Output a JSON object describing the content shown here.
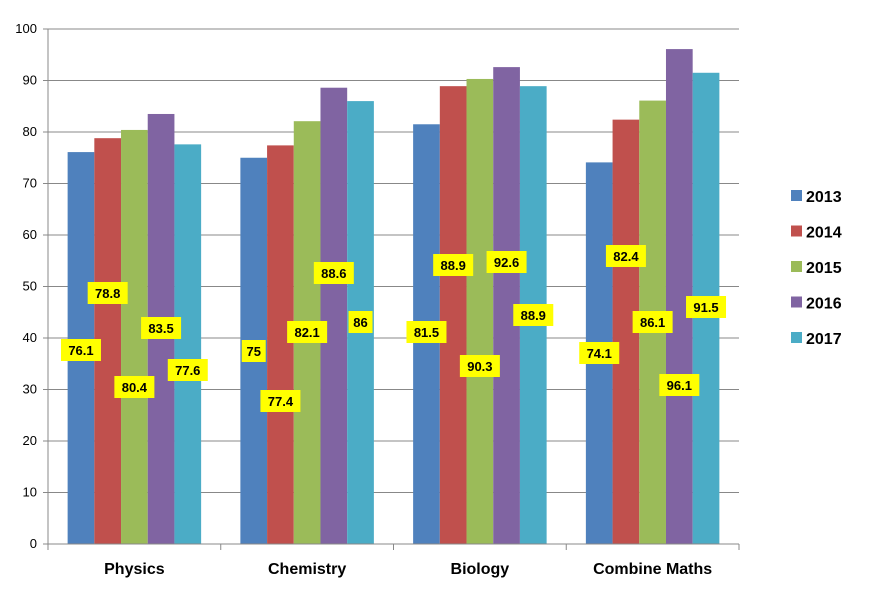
{
  "chart_data": {
    "type": "bar",
    "categories": [
      "Physics",
      "Chemistry",
      "Biology",
      "Combine Maths"
    ],
    "series": [
      {
        "name": "2013",
        "color": "#4F81BD",
        "values": [
          76.1,
          75,
          81.5,
          74.1
        ]
      },
      {
        "name": "2014",
        "color": "#C0504D",
        "values": [
          78.8,
          77.4,
          88.9,
          82.4
        ]
      },
      {
        "name": "2015",
        "color": "#9BBB59",
        "values": [
          80.4,
          82.1,
          90.3,
          86.1
        ]
      },
      {
        "name": "2016",
        "color": "#8064A2",
        "values": [
          83.5,
          88.6,
          92.6,
          96.1
        ]
      },
      {
        "name": "2017",
        "color": "#4BACC6",
        "values": [
          77.6,
          86,
          88.9,
          91.5
        ]
      }
    ],
    "y_ticks": [
      "0",
      "10",
      "20",
      "30",
      "40",
      "50",
      "60",
      "70",
      "80",
      "90",
      "100"
    ],
    "ylim": [
      0,
      100
    ],
    "grid": true,
    "legend_position": "right",
    "data_label_color": "#FFFF00"
  }
}
